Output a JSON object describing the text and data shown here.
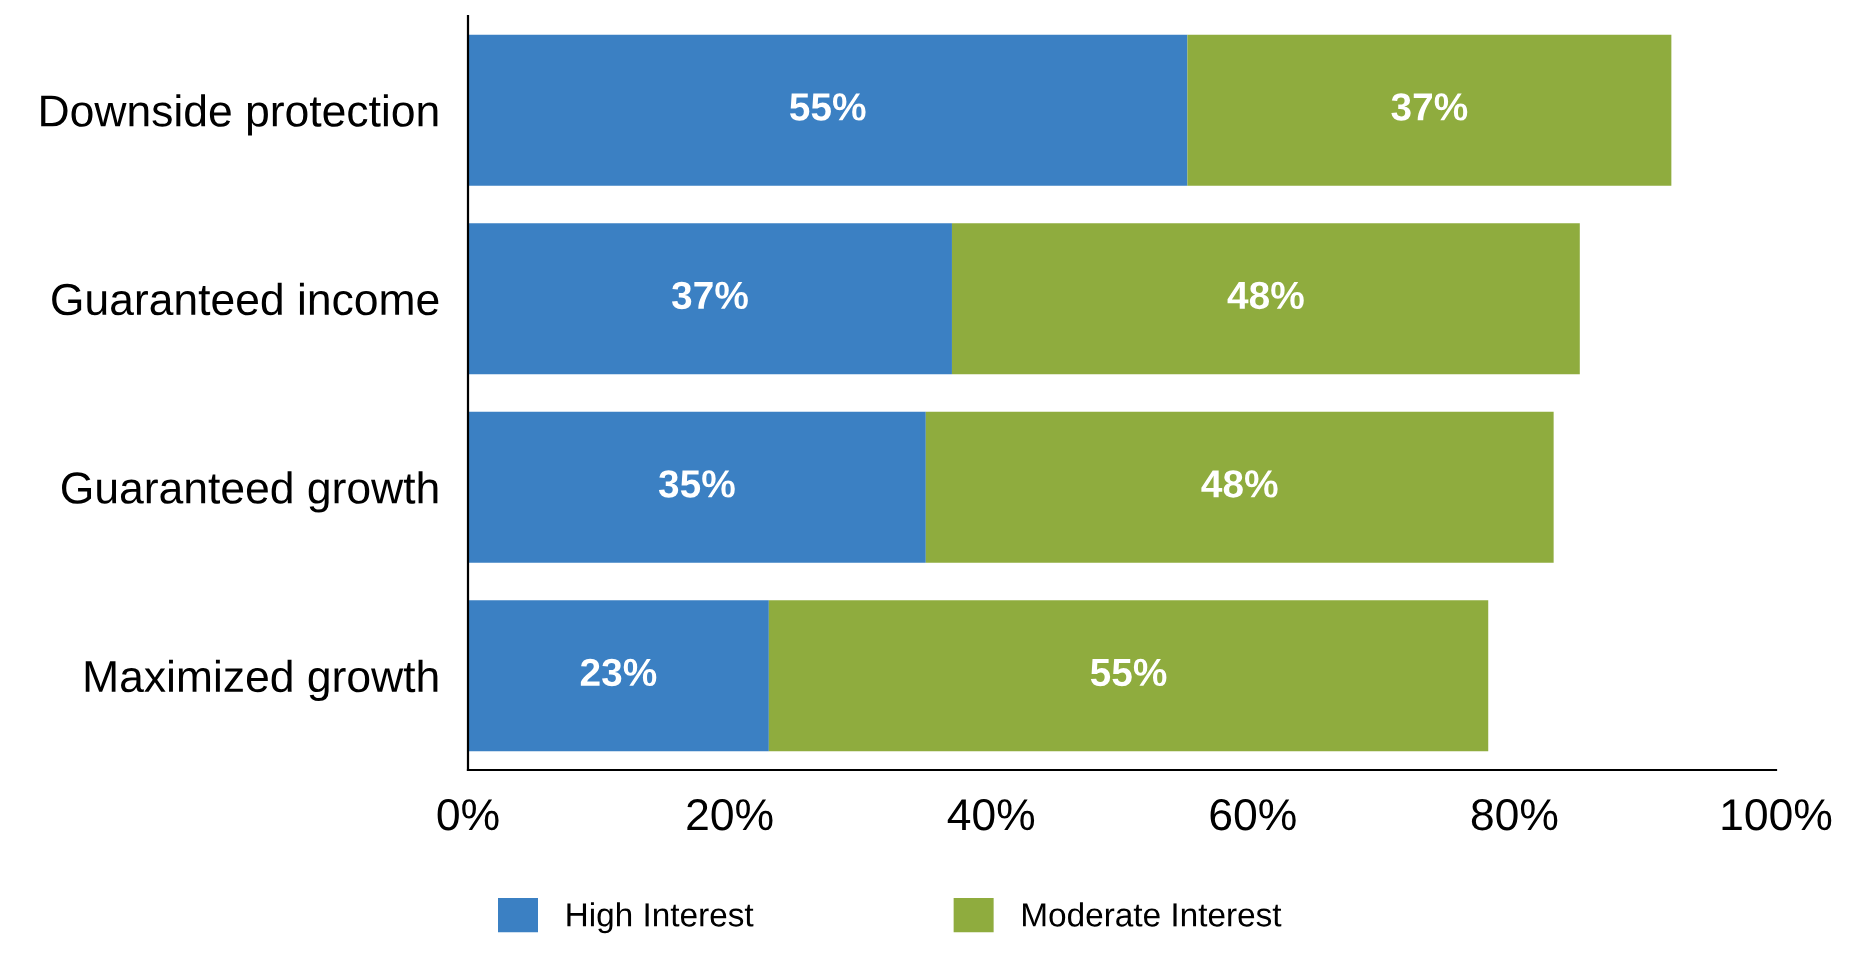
{
  "chart_data": {
    "type": "bar",
    "orientation": "horizontal",
    "stacked": true,
    "categories": [
      "Downside protection",
      "Guaranteed income",
      "Guaranteed growth",
      "Maximized growth"
    ],
    "series": [
      {
        "name": "High Interest",
        "color": "#3b80c3",
        "values": [
          55,
          37,
          35,
          23
        ],
        "value_labels": [
          "55%",
          "37%",
          "35%",
          "23%"
        ]
      },
      {
        "name": "Moderate Interest",
        "color": "#8fac3e",
        "values": [
          37,
          48,
          48,
          55
        ],
        "value_labels": [
          "37%",
          "48%",
          "48%",
          "55%"
        ]
      }
    ],
    "xlim": [
      0,
      100
    ],
    "xticks": [
      {
        "value": 0,
        "label": "0%"
      },
      {
        "value": 20,
        "label": "20%"
      },
      {
        "value": 40,
        "label": "40%"
      },
      {
        "value": 60,
        "label": "60%"
      },
      {
        "value": 80,
        "label": "80%"
      },
      {
        "value": 100,
        "label": "100%"
      }
    ],
    "grid": false,
    "legend": "bottom"
  }
}
